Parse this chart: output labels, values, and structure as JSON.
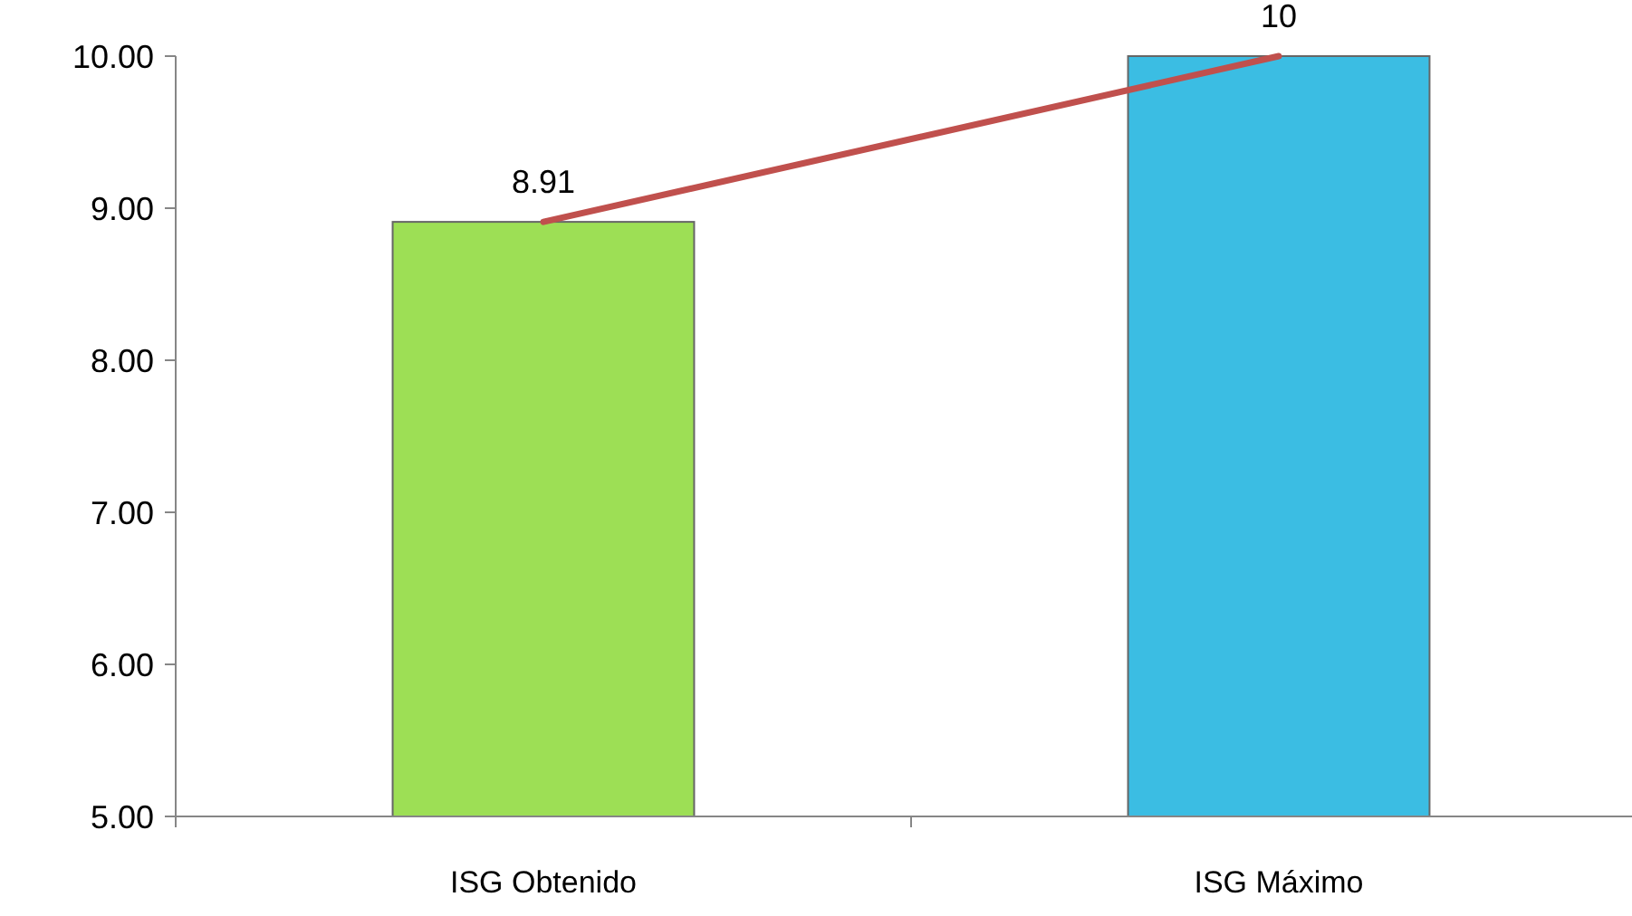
{
  "chart_data": {
    "type": "bar",
    "categories": [
      "ISG Obtenido",
      "ISG Máximo"
    ],
    "series": [
      {
        "colors": [
          "#9ddf55",
          "#3bbde3"
        ],
        "values": [
          8.91,
          10
        ],
        "value_labels": [
          "8.91",
          "10"
        ]
      },
      {
        "type": "line",
        "color": "#c0504d",
        "values": [
          8.91,
          10
        ]
      }
    ],
    "ylim": [
      5,
      10
    ],
    "yticks": [
      {
        "value": 5,
        "label": "5.00"
      },
      {
        "value": 6,
        "label": "6.00"
      },
      {
        "value": 7,
        "label": "7.00"
      },
      {
        "value": 8,
        "label": "8.00"
      },
      {
        "value": 9,
        "label": "9.00"
      },
      {
        "value": 10,
        "label": "10.00"
      }
    ],
    "grid": false
  }
}
